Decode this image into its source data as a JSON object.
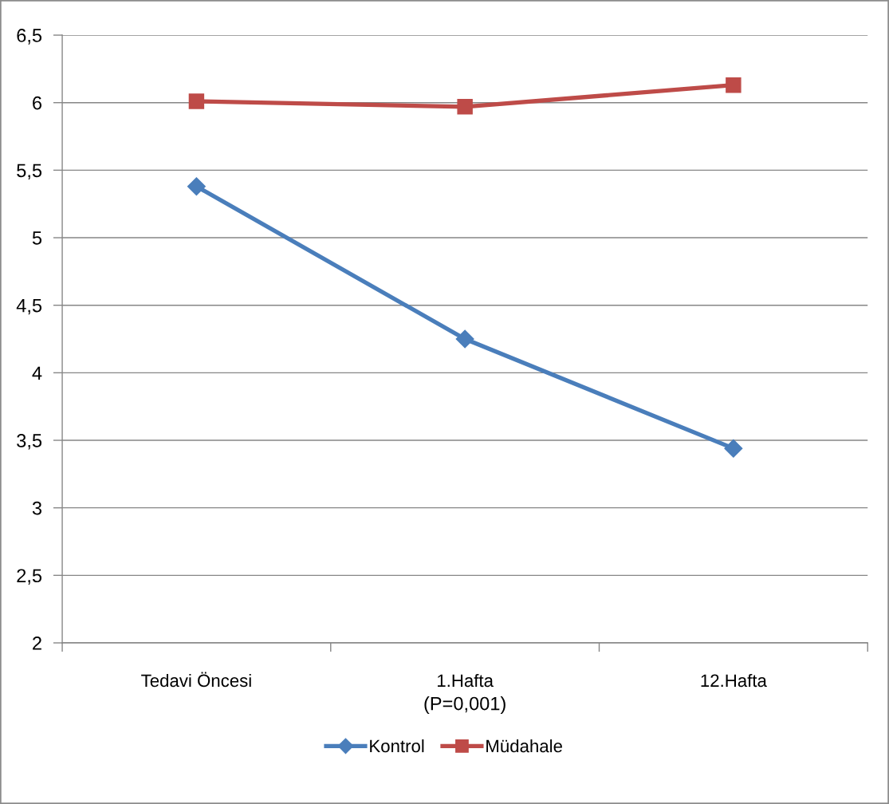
{
  "chart_data": {
    "type": "line",
    "categories": [
      "Tedavi Öncesi",
      "1.Hafta",
      "12.Hafta"
    ],
    "xlabel": "(P=0,001)",
    "series": [
      {
        "name": "Kontrol",
        "color": "#4a7ebb",
        "marker": "diamond",
        "values": [
          5.38,
          4.25,
          3.44
        ]
      },
      {
        "name": "Müdahale",
        "color": "#be4b48",
        "marker": "square",
        "values": [
          6.01,
          5.97,
          6.13
        ]
      }
    ],
    "ylim": [
      2,
      6.5
    ],
    "yticks": [
      2,
      {
        "value": 2.5,
        "label": "2,5"
      },
      3,
      {
        "value": 3.5,
        "label": "3,5"
      },
      4,
      {
        "value": 4.5,
        "label": "4,5"
      },
      5,
      {
        "value": 5.5,
        "label": "5,5"
      },
      6,
      {
        "value": 6.5,
        "label": "6,5"
      }
    ],
    "grid": "y",
    "legend": "bottom",
    "line_style": "solid"
  }
}
